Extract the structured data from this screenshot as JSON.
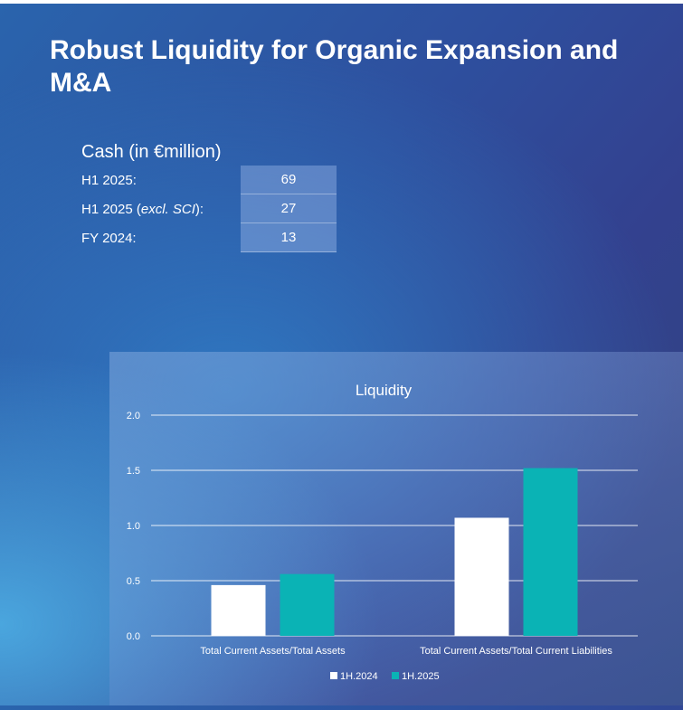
{
  "slide": {
    "title": "Robust Liquidity for Organic Expansion and M&A"
  },
  "cash": {
    "heading": "Cash (in €million)",
    "rows": [
      {
        "label": "H1 2025:",
        "label_italic": "",
        "label_suffix": "",
        "value": "69"
      },
      {
        "label": "H1 2025 (",
        "label_italic": "excl. SCI",
        "label_suffix": "):",
        "value": "27"
      },
      {
        "label": "FY 2024:",
        "label_italic": "",
        "label_suffix": "",
        "value": "13"
      }
    ]
  },
  "chart_data": {
    "type": "bar",
    "title": "Liquidity",
    "categories": [
      "Total Current Assets/Total Assets",
      "Total Current Assets/Total Current Liabilities"
    ],
    "series": [
      {
        "name": "1H.2024",
        "color": "#ffffff",
        "values": [
          0.46,
          1.07
        ]
      },
      {
        "name": "1H.2025",
        "color": "#0ab3b5",
        "values": [
          0.56,
          1.52
        ]
      }
    ],
    "ylim": [
      0,
      2.0
    ],
    "yticks": [
      "0.0",
      "0.5",
      "1.0",
      "1.5",
      "2.0"
    ],
    "ytick_values": [
      0,
      0.5,
      1.0,
      1.5,
      2.0
    ],
    "grid": true,
    "legend": "bottom"
  }
}
